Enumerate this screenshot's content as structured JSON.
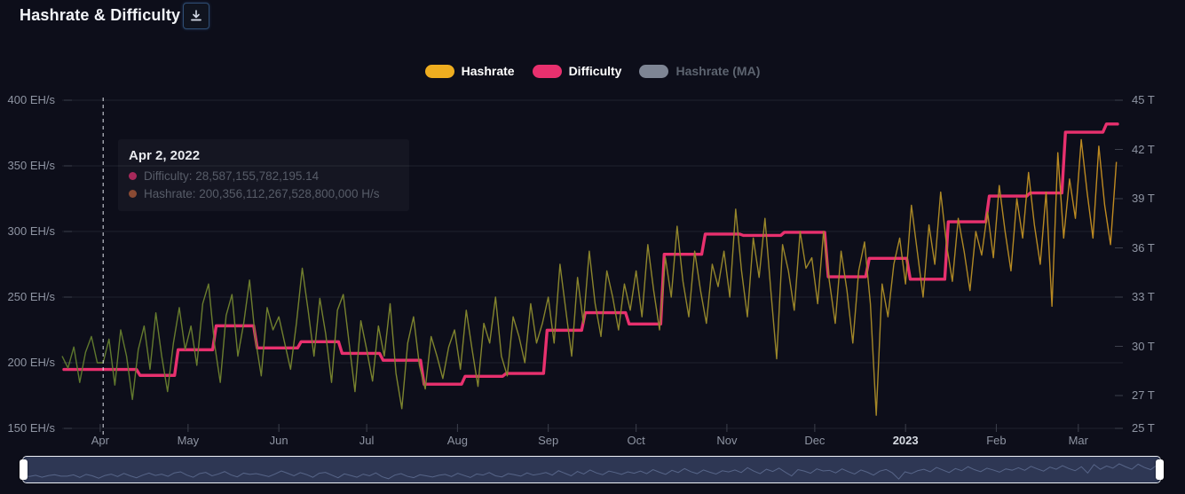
{
  "header": {
    "title": "Hashrate & Difficulty",
    "download_tooltip": "Download"
  },
  "legend": {
    "items": [
      {
        "label": "Hashrate",
        "swatch_color": "#eead20",
        "text_color": "#ffffff",
        "active": true
      },
      {
        "label": "Difficulty",
        "swatch_color": "#e8306e",
        "text_color": "#ffffff",
        "active": true
      },
      {
        "label": "Hashrate (MA)",
        "swatch_color": "#7e8594",
        "text_color": "#5d6470",
        "active": false
      }
    ]
  },
  "tooltip": {
    "date": "Apr 2, 2022",
    "rows": [
      {
        "label": "Difficulty: 28,587,155,782,195.14",
        "dot_color": "#a8295b"
      },
      {
        "label": "Hashrate: 200,356,112,267,528,800,000 H/s",
        "dot_color": "#8a4a33"
      }
    ]
  },
  "colors": {
    "background": "#0d0e1a",
    "grid": "#1f222d",
    "tick": "#3c404c",
    "axis_text": "#8e94a2",
    "crosshair": "#dfe3ea",
    "hashrate_gradient": [
      "#5c772d",
      "#7d842e",
      "#98862a",
      "#c08a20"
    ],
    "difficulty": "#e8306e",
    "hashrate_ma": "#7e8594",
    "navigator_fill": "#2e3754",
    "navigator_line": "#5c6a8e",
    "navigator_border": "#eef1f6"
  },
  "chart_data": {
    "type": "line",
    "title": "Hashrate & Difficulty",
    "start_date": "Mar 19, 2022",
    "days": 361,
    "crosshair_day": 14,
    "y_left": {
      "unit": "EH/s",
      "range": [
        150,
        400
      ],
      "ticks": [
        400,
        350,
        300,
        250,
        200,
        150
      ],
      "tick_labels": [
        "400 EH/s",
        "350 EH/s",
        "300 EH/s",
        "250 EH/s",
        "200 EH/s",
        "150 EH/s"
      ]
    },
    "y_right": {
      "unit": "T",
      "range": [
        25,
        45
      ],
      "ticks": [
        45,
        42,
        39,
        36,
        33,
        30,
        27,
        25
      ],
      "tick_labels": [
        "45 T",
        "42 T",
        "39 T",
        "36 T",
        "33 T",
        "30 T",
        "27 T",
        "25 T"
      ]
    },
    "x_axis": {
      "months": [
        {
          "label": "Apr",
          "day": 13,
          "bold": false
        },
        {
          "label": "May",
          "day": 43,
          "bold": false
        },
        {
          "label": "Jun",
          "day": 74,
          "bold": false
        },
        {
          "label": "Jul",
          "day": 104,
          "bold": false
        },
        {
          "label": "Aug",
          "day": 135,
          "bold": false
        },
        {
          "label": "Sep",
          "day": 166,
          "bold": false
        },
        {
          "label": "Oct",
          "day": 196,
          "bold": false
        },
        {
          "label": "Nov",
          "day": 227,
          "bold": false
        },
        {
          "label": "Dec",
          "day": 257,
          "bold": false
        },
        {
          "label": "2023",
          "day": 288,
          "bold": true
        },
        {
          "label": "Feb",
          "day": 319,
          "bold": false
        },
        {
          "label": "Mar",
          "day": 347,
          "bold": false
        }
      ]
    },
    "series": [
      {
        "name": "Hashrate",
        "unit": "EH/s",
        "axis": "left",
        "visible": true,
        "step_days": 2,
        "values": [
          205,
          196,
          212,
          185,
          208,
          220,
          200,
          200,
          218,
          183,
          225,
          205,
          172,
          210,
          228,
          195,
          238,
          205,
          178,
          215,
          242,
          210,
          228,
          198,
          245,
          260,
          215,
          185,
          236,
          252,
          205,
          230,
          263,
          218,
          190,
          242,
          225,
          235,
          215,
          195,
          230,
          272,
          240,
          205,
          249,
          222,
          185,
          240,
          252,
          215,
          178,
          232,
          210,
          186,
          228,
          205,
          245,
          192,
          165,
          215,
          235,
          198,
          180,
          220,
          205,
          188,
          212,
          225,
          195,
          240,
          210,
          182,
          230,
          215,
          250,
          205,
          190,
          235,
          220,
          200,
          245,
          215,
          230,
          250,
          215,
          275,
          240,
          205,
          265,
          230,
          285,
          245,
          220,
          270,
          250,
          225,
          260,
          240,
          270,
          235,
          290,
          255,
          225,
          280,
          250,
          304,
          262,
          235,
          285,
          255,
          230,
          275,
          258,
          285,
          250,
          317,
          270,
          235,
          295,
          265,
          310,
          255,
          203,
          290,
          270,
          240,
          300,
          272,
          280,
          245,
          300,
          262,
          230,
          285,
          255,
          215,
          270,
          292,
          245,
          160,
          260,
          235,
          275,
          295,
          260,
          320,
          285,
          250,
          305,
          275,
          330,
          290,
          262,
          310,
          285,
          255,
          300,
          282,
          315,
          280,
          335,
          300,
          270,
          325,
          295,
          345,
          305,
          275,
          330,
          243,
          360,
          295,
          340,
          310,
          370,
          330,
          295,
          365,
          320,
          290,
          353
        ]
      },
      {
        "name": "Difficulty",
        "unit": "T",
        "axis": "right",
        "visible": true,
        "steps": [
          [
            0,
            28.59
          ],
          [
            26,
            28.23
          ],
          [
            39,
            29.79
          ],
          [
            52,
            31.25
          ],
          [
            66,
            29.9
          ],
          [
            81,
            30.28
          ],
          [
            95,
            29.57
          ],
          [
            109,
            29.15
          ],
          [
            123,
            27.69
          ],
          [
            137,
            28.17
          ],
          [
            151,
            28.35
          ],
          [
            165,
            30.98
          ],
          [
            178,
            32.05
          ],
          [
            193,
            31.36
          ],
          [
            205,
            35.61
          ],
          [
            219,
            36.84
          ],
          [
            232,
            36.76
          ],
          [
            246,
            36.95
          ],
          [
            261,
            34.24
          ],
          [
            275,
            35.36
          ],
          [
            289,
            34.09
          ],
          [
            302,
            37.59
          ],
          [
            316,
            39.16
          ],
          [
            330,
            39.35
          ],
          [
            342,
            43.05
          ],
          [
            356,
            43.55
          ]
        ]
      },
      {
        "name": "Hashrate (MA)",
        "axis": "left",
        "visible": false
      }
    ]
  }
}
